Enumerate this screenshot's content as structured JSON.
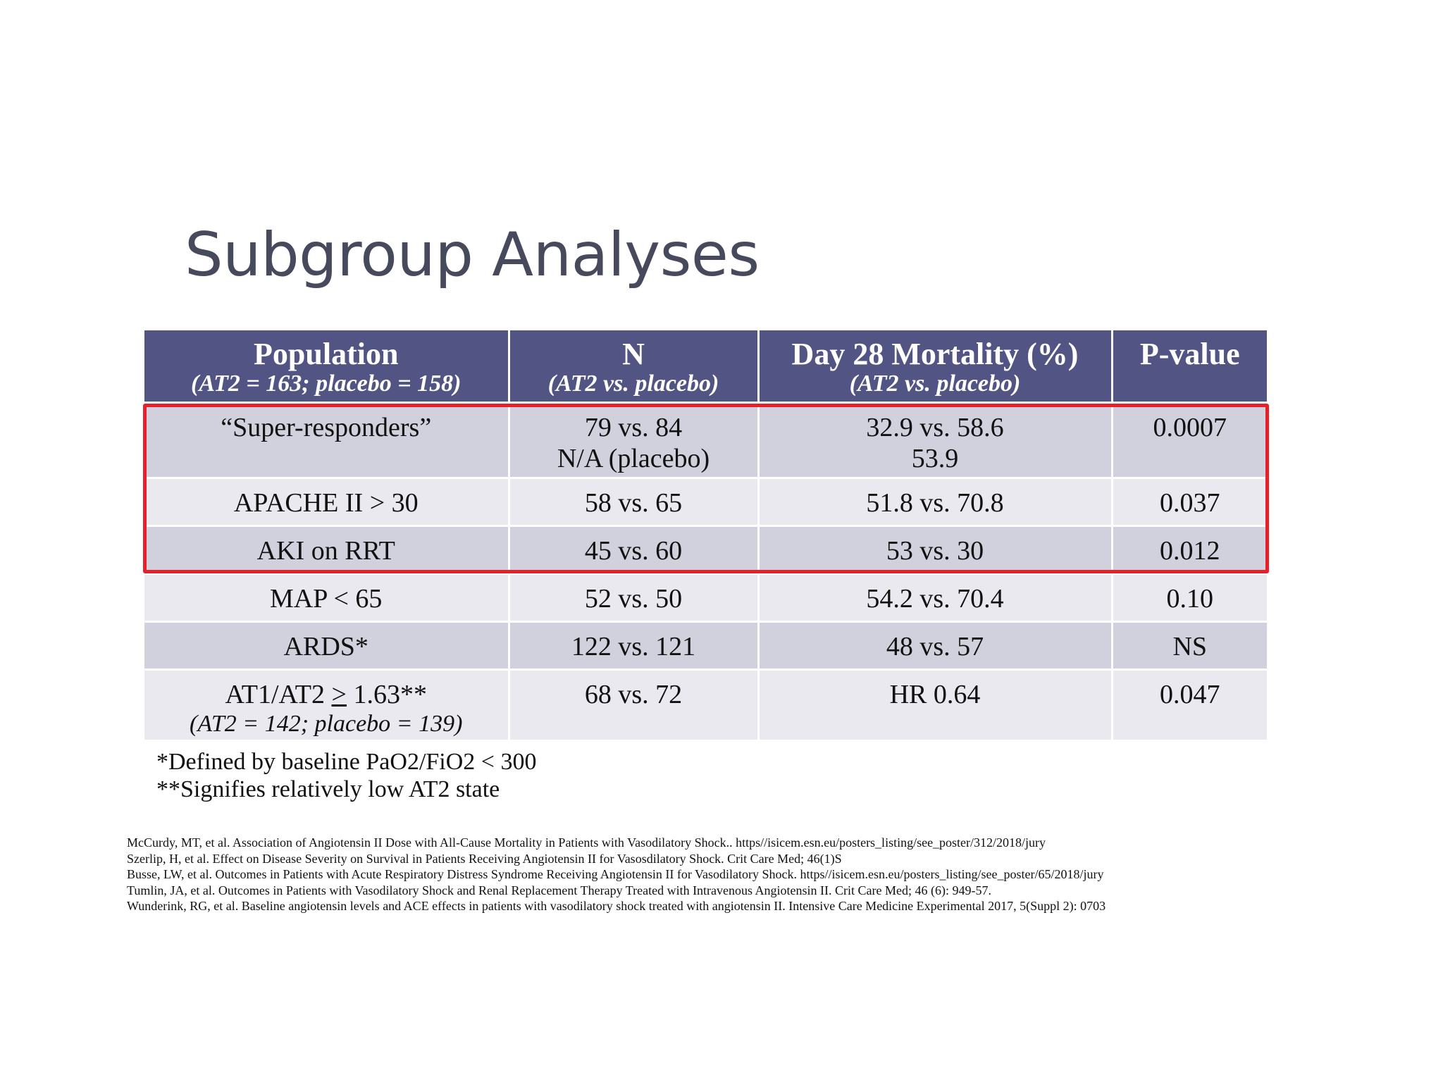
{
  "title": "Subgroup Analyses",
  "table": {
    "headers": [
      {
        "main": "Population",
        "sub": "(AT2 = 163; placebo = 158)"
      },
      {
        "main": "N",
        "sub": "(AT2 vs. placebo)"
      },
      {
        "main": "Day 28 Mortality (%)",
        "sub": "(AT2 vs. placebo)"
      },
      {
        "main": "P-value",
        "sub": ""
      }
    ],
    "rows": [
      {
        "population": "“Super-responders”",
        "population_sub": "",
        "n": "79 vs. 84",
        "n_2": "N/A (placebo)",
        "mortality": "32.9 vs. 58.6",
        "mortality_2": "53.9",
        "p": "0.0007"
      },
      {
        "population": "APACHE II > 30",
        "population_sub": "",
        "n": "58 vs. 65",
        "n_2": "",
        "mortality": "51.8 vs. 70.8",
        "mortality_2": "",
        "p": "0.037"
      },
      {
        "population": "AKI on RRT",
        "population_sub": "",
        "n": "45 vs. 60",
        "n_2": "",
        "mortality": "53 vs. 30",
        "mortality_2": "",
        "p": "0.012"
      },
      {
        "population": "MAP < 65",
        "population_sub": "",
        "n": "52 vs. 50",
        "n_2": "",
        "mortality": "54.2 vs. 70.4",
        "mortality_2": "",
        "p": "0.10"
      },
      {
        "population": "ARDS*",
        "population_sub": "",
        "n": "122 vs. 121",
        "n_2": "",
        "mortality": "48 vs. 57",
        "mortality_2": "",
        "p": "NS"
      },
      {
        "population_prefix": "AT1/AT2 ",
        "population_ge": ">",
        "population_suffix": " 1.63**",
        "population_sub": "(AT2 = 142; placebo = 139)",
        "n": "68 vs. 72",
        "n_2": "",
        "mortality": "HR 0.64",
        "mortality_2": "",
        "p": "0.047"
      }
    ]
  },
  "highlight": {
    "color": "#e8202a"
  },
  "colors": {
    "header_bg": "#525484",
    "row_dark": "#d0d1dc",
    "row_light": "#e9e9ef",
    "title": "#474a5c"
  },
  "footnotes": [
    "*Defined by baseline PaO2/FiO2 < 300",
    "**Signifies relatively low AT2 state"
  ],
  "references": [
    "McCurdy, MT, et al. Association of Angiotensin II Dose with All-Cause Mortality in  Patients with Vasodilatory Shock.. https//isicem.esn.eu/posters_listing/see_poster/312/2018/jury",
    "Szerlip, H, et al. Effect on Disease Severity on Survival in Patients Receiving Angiotensin II for Vasosdilatory Shock. Crit Care Med; 46(1)S",
    "Busse, LW, et al. Outcomes in Patients with Acute Respiratory Distress Syndrome Receiving Angiotensin II for Vasodilatory Shock. https//isicem.esn.eu/posters_listing/see_poster/65/2018/jury",
    "Tumlin, JA, et al. Outcomes in Patients with Vasodilatory Shock and Renal Replacement Therapy Treated with Intravenous Angiotensin II. Crit Care Med; 46 (6): 949-57.",
    "Wunderink, RG, et al. Baseline angiotensin levels and ACE effects in patients with vasodilatory shock treated with angiotensin II. Intensive Care Medicine Experimental 2017, 5(Suppl 2): 0703"
  ]
}
